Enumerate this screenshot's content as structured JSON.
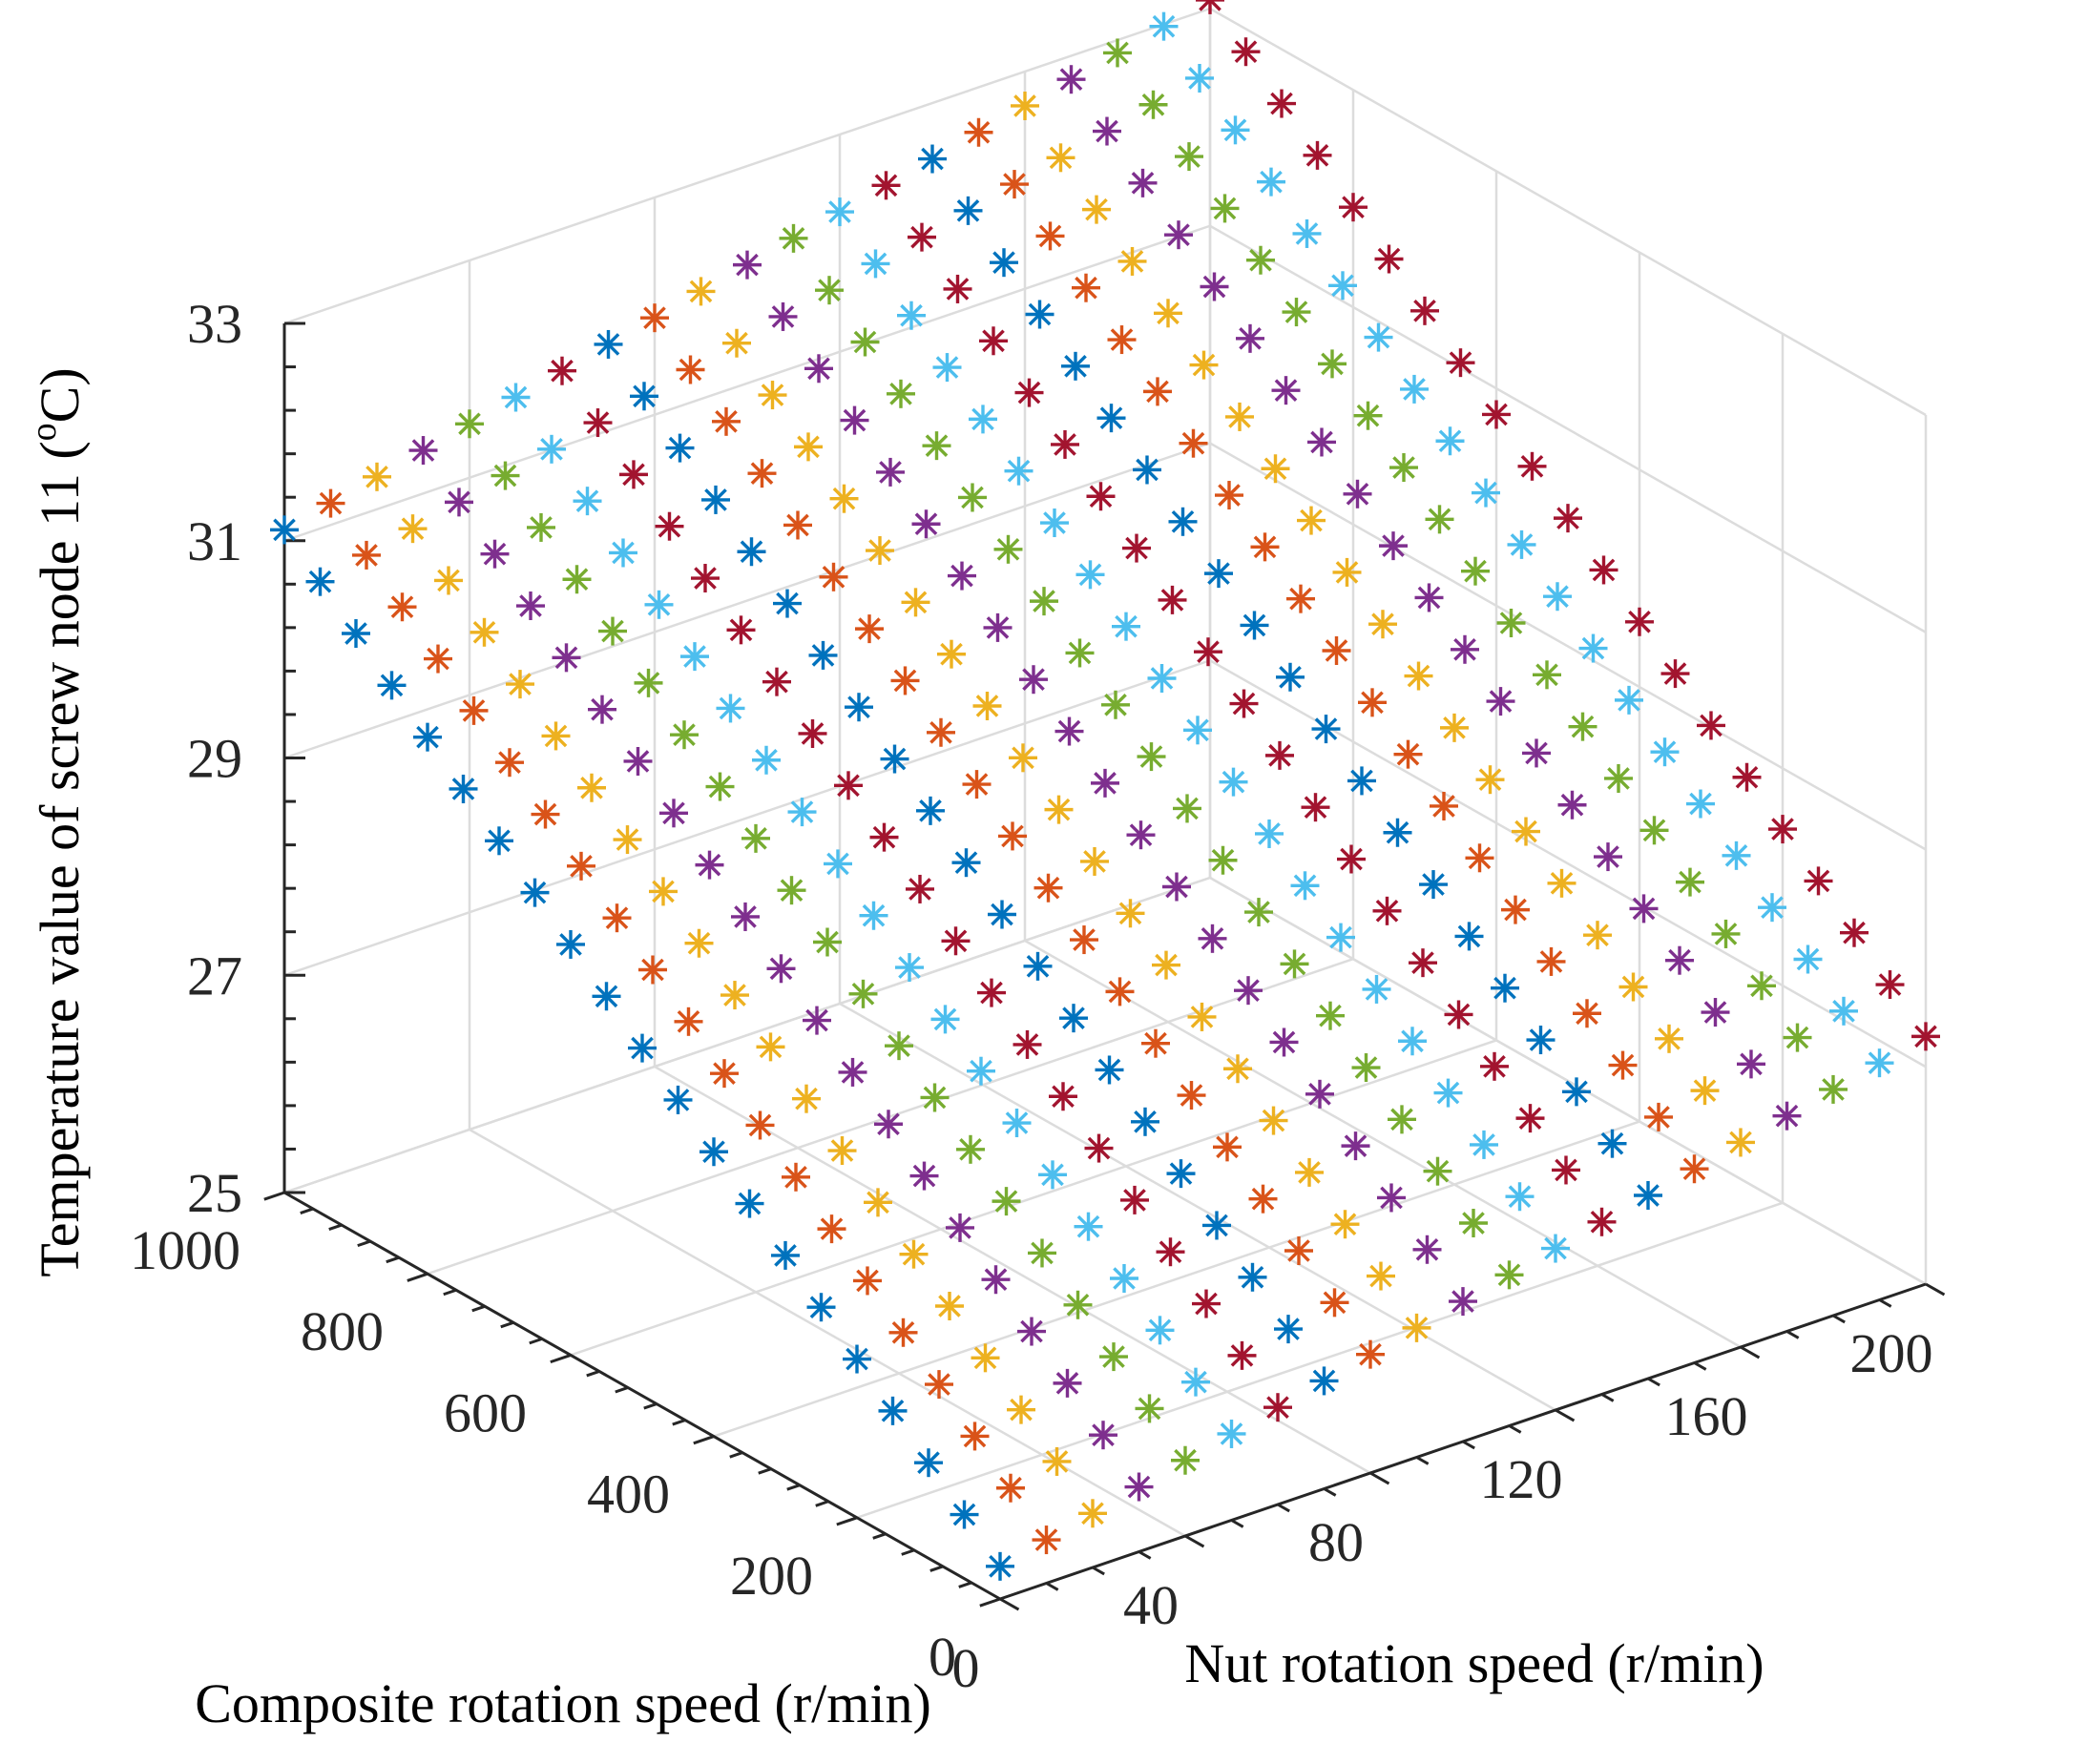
{
  "chart_data": {
    "type": "scatter3d",
    "marker": "asterisk",
    "title": "",
    "xlabel": "Nut rotation speed (r/min)",
    "ylabel": "Composite rotation speed (r/min)",
    "zlabel": {
      "prefix": "Temperature value of screw node 11 (",
      "superscript": "o",
      "suffix": "C)"
    },
    "xlim": [
      0,
      200
    ],
    "ylim": [
      0,
      1000
    ],
    "zlim": [
      25,
      33
    ],
    "xticks": [
      "0",
      "40",
      "80",
      "120",
      "160",
      "200"
    ],
    "yticks": [
      "0",
      "200",
      "400",
      "600",
      "800",
      "1000"
    ],
    "zticks": [
      "25",
      "27",
      "29",
      "31",
      "33"
    ],
    "grid": true,
    "series_colors": [
      "#0072BD",
      "#D95319",
      "#EDB120",
      "#7E2F8E",
      "#77AC30",
      "#4DBEEE",
      "#A2142F"
    ],
    "x_range": {
      "start": 0,
      "end": 200,
      "count": 21
    },
    "y_range": {
      "start": 0,
      "end": 1000,
      "count": 21
    },
    "surface_model": {
      "description": "z = z0 + a*x + b*y (approximately planar)",
      "z0": 25.3,
      "a_per_x": 0.0099,
      "b_per_y": 0.0058
    },
    "sample_points": [
      {
        "x": 0,
        "y": 0,
        "z": 25.3
      },
      {
        "x": 200,
        "y": 0,
        "z": 27.3
      },
      {
        "x": 0,
        "y": 1000,
        "z": 31.1
      },
      {
        "x": 200,
        "y": 1000,
        "z": 33.1
      }
    ]
  }
}
